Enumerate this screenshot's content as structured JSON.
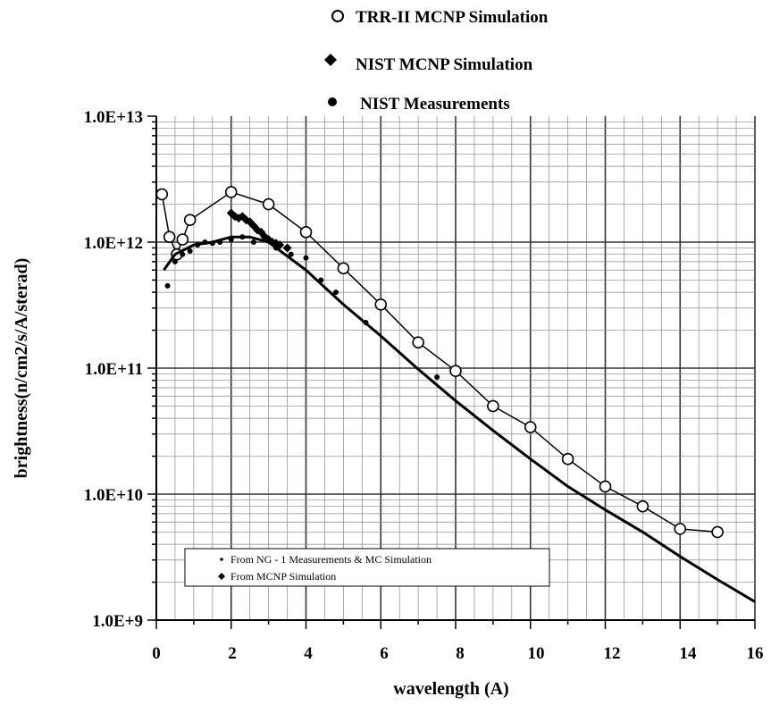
{
  "chart_data": {
    "type": "scatter",
    "title": "",
    "xlabel": "wavelength (A)",
    "ylabel": "brightness(n/cm2/s/A/sterad)",
    "xlim": [
      0,
      16
    ],
    "ylim": [
      1000000000.0,
      10000000000000.0
    ],
    "yscale": "log",
    "grid": true,
    "x_ticks": [
      "0",
      "2",
      "4",
      "6",
      "8",
      "10",
      "12",
      "14",
      "16"
    ],
    "y_ticks": [
      "1.0E+9",
      "1.0E+10",
      "1.0E+11",
      "1.0E+12",
      "1.0E+13"
    ],
    "legend": {
      "placement": "top (outside plot)",
      "entries": [
        {
          "marker": "open-circle",
          "label": "TRR-II MCNP Simulation"
        },
        {
          "marker": "diamond",
          "label": "NIST MCNP Simulation"
        },
        {
          "marker": "filled-circle",
          "label": "NIST Measurements"
        }
      ]
    },
    "inner_legend": {
      "placement": "bottom-left",
      "entries": [
        {
          "marker": "small-dot",
          "label": "From NG - 1 Measurements & MC Simulation"
        },
        {
          "marker": "diamond",
          "label": "From MCNP Simulation"
        }
      ]
    },
    "series": [
      {
        "name": "TRR-II MCNP Simulation",
        "marker": "open-circle",
        "line": true,
        "x": [
          0.15,
          0.35,
          0.55,
          0.7,
          0.9,
          2.0,
          3.0,
          4.0,
          5.0,
          6.0,
          7.0,
          8.0,
          9.0,
          10.0,
          11.0,
          12.0,
          13.0,
          14.0,
          15.0
        ],
        "y": [
          2400000000000.0,
          1100000000000.0,
          800000000000.0,
          1050000000000.0,
          1500000000000.0,
          2500000000000.0,
          2000000000000.0,
          1200000000000.0,
          620000000000.0,
          320000000000.0,
          160000000000.0,
          95000000000.0,
          50000000000.0,
          34000000000.0,
          19000000000.0,
          11500000000.0,
          8000000000.0,
          5300000000.0,
          5000000000.0
        ]
      },
      {
        "name": "NIST MCNP Simulation",
        "marker": "diamond",
        "x": [
          2.0,
          2.1,
          2.2,
          2.3,
          2.4,
          2.5,
          2.6,
          2.7,
          2.8,
          2.9,
          3.0,
          3.1,
          3.2,
          3.3,
          3.5
        ],
        "y": [
          1700000000000.0,
          1600000000000.0,
          1550000000000.0,
          1600000000000.0,
          1500000000000.0,
          1450000000000.0,
          1350000000000.0,
          1250000000000.0,
          1200000000000.0,
          1100000000000.0,
          1050000000000.0,
          1000000000000.0,
          980000000000.0,
          950000000000.0,
          900000000000.0
        ]
      },
      {
        "name": "NIST Measurements",
        "marker": "filled-circle",
        "x": [
          0.3,
          0.5,
          0.7,
          0.9,
          1.1,
          1.3,
          1.5,
          1.7,
          2.0,
          2.3,
          2.6,
          3.2,
          3.6,
          4.0,
          4.4,
          4.8,
          5.6,
          7.5
        ],
        "y": [
          450000000000.0,
          700000000000.0,
          800000000000.0,
          850000000000.0,
          950000000000.0,
          1000000000000.0,
          980000000000.0,
          1000000000000.0,
          1050000000000.0,
          1100000000000.0,
          1000000000000.0,
          900000000000.0,
          800000000000.0,
          750000000000.0,
          500000000000.0,
          400000000000.0,
          230000000000.0,
          85000000000.0
        ]
      },
      {
        "name": "From NG - 1 Measurements & MC Simulation",
        "marker": "line",
        "line": true,
        "x": [
          0.2,
          0.5,
          1.0,
          1.5,
          2.0,
          2.5,
          3.0,
          4.0,
          5.0,
          6.0,
          7.0,
          8.0,
          9.0,
          10.0,
          11.0,
          12.0,
          13.0,
          14.0,
          15.0,
          16.0
        ],
        "y": [
          600000000000.0,
          800000000000.0,
          950000000000.0,
          1000000000000.0,
          1100000000000.0,
          1100000000000.0,
          1000000000000.0,
          600000000000.0,
          320000000000.0,
          180000000000.0,
          98000000000.0,
          55000000000.0,
          32000000000.0,
          19000000000.0,
          11500000000.0,
          7500000000.0,
          5000000000.0,
          3200000000.0,
          2100000000.0,
          1400000000.0
        ]
      }
    ]
  }
}
